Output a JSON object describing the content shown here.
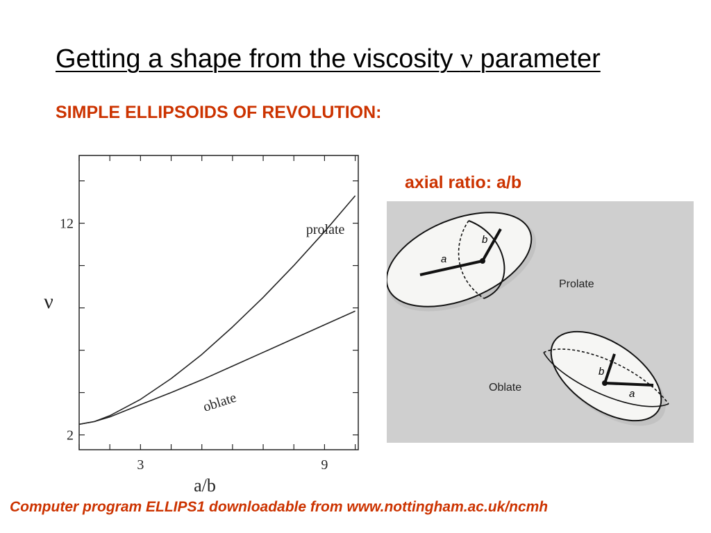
{
  "slide": {
    "title_prefix": "Getting a shape from the viscosity ",
    "title_symbol": "ν",
    "title_suffix": " parameter",
    "subtitle": "SIMPLE ELLIPSOIDS OF REVOLUTION:",
    "axial_ratio_label": "axial ratio:  a/b",
    "footer": "Computer program ELLIPS1 downloadable from www.nottingham.ac.uk/ncmh"
  },
  "figure": {
    "prolate_label": "Prolate",
    "oblate_label": "Oblate",
    "a_label": "a",
    "b_label": "b",
    "background_color": "#cfcfcf"
  },
  "chart_data": {
    "type": "line",
    "xlabel": "a/b",
    "ylabel": "ν",
    "xlim": [
      1,
      10.1
    ],
    "ylim": [
      1.3,
      15.2
    ],
    "xticks": [
      3,
      9
    ],
    "yticks": [
      2,
      12
    ],
    "grid": false,
    "series": [
      {
        "name": "prolate",
        "x": [
          1,
          1.5,
          2,
          3,
          4,
          5,
          6,
          7,
          8,
          9,
          10
        ],
        "y": [
          2.5,
          2.63,
          2.91,
          3.68,
          4.66,
          5.8,
          7.1,
          8.5,
          10.0,
          11.6,
          13.3
        ],
        "color": "#222222"
      },
      {
        "name": "oblate",
        "x": [
          1,
          1.5,
          2,
          3,
          4,
          5,
          6,
          7,
          8,
          9,
          10
        ],
        "y": [
          2.5,
          2.63,
          2.85,
          3.43,
          4.0,
          4.6,
          5.25,
          5.9,
          6.55,
          7.2,
          7.85
        ],
        "color": "#222222"
      }
    ]
  }
}
